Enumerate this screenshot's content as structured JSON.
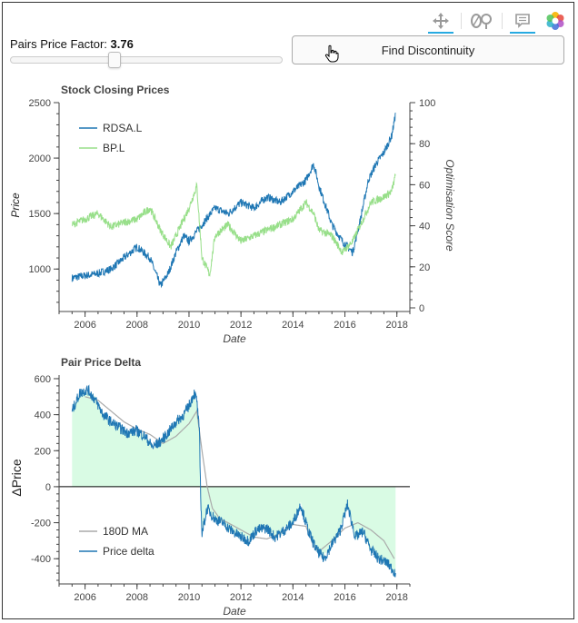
{
  "controls": {
    "slider_label": "Pairs Price Factor: ",
    "slider_value": "3.76",
    "slider_min": 0,
    "slider_max": 10,
    "button_label": "Find Discontinuity"
  },
  "toolbar": {
    "tools": [
      {
        "name": "pan-icon",
        "glyph": "✥",
        "active": true
      },
      {
        "name": "wheel-zoom-icon",
        "glyph": "0P",
        "active": false
      },
      {
        "name": "hover-icon",
        "glyph": "▤",
        "active": true
      },
      {
        "name": "bokeh-logo",
        "glyph": "",
        "active": false
      }
    ]
  },
  "chart_data": [
    {
      "type": "line",
      "title": "Stock Closing Prices",
      "xlabel": "Date",
      "ylabel": "Price",
      "y2label": "Optimisation Score",
      "xlim": [
        2005.0,
        2018.5
      ],
      "ylim": [
        650,
        2500
      ],
      "y2lim": [
        0,
        100
      ],
      "xticks": [
        2006,
        2008,
        2010,
        2012,
        2014,
        2016,
        2018
      ],
      "yticks": [
        1000,
        1500,
        2000,
        2500
      ],
      "y2ticks": [
        0,
        20,
        40,
        60,
        80,
        100
      ],
      "legend_position": "top-left",
      "series": [
        {
          "name": "RDSA.L",
          "color": "#1f77b4",
          "x": [
            2005.5,
            2006.0,
            2006.5,
            2007.0,
            2007.5,
            2008.0,
            2008.5,
            2008.9,
            2009.2,
            2009.5,
            2009.8,
            2010.0,
            2010.5,
            2011.0,
            2011.5,
            2012.0,
            2012.5,
            2013.0,
            2013.5,
            2014.0,
            2014.5,
            2014.8,
            2015.0,
            2015.5,
            2015.9,
            2016.3,
            2016.6,
            2016.9,
            2017.2,
            2017.5,
            2017.8,
            2017.95
          ],
          "y": [
            920,
            940,
            960,
            1000,
            1100,
            1200,
            1100,
            850,
            960,
            1150,
            1300,
            1250,
            1400,
            1550,
            1500,
            1600,
            1550,
            1650,
            1600,
            1700,
            1800,
            1950,
            1750,
            1400,
            1250,
            1150,
            1450,
            1800,
            1950,
            2050,
            2200,
            2400
          ]
        },
        {
          "name": "BP.L",
          "color": "#98df8a",
          "x": [
            2005.5,
            2006.0,
            2006.5,
            2007.0,
            2007.5,
            2008.0,
            2008.5,
            2008.9,
            2009.3,
            2009.7,
            2010.0,
            2010.3,
            2010.5,
            2010.8,
            2011.0,
            2011.5,
            2012.0,
            2012.5,
            2013.0,
            2013.5,
            2014.0,
            2014.5,
            2014.8,
            2015.0,
            2015.5,
            2015.9,
            2016.3,
            2016.6,
            2017.0,
            2017.5,
            2017.8,
            2017.95
          ],
          "y": [
            1400,
            1450,
            1500,
            1380,
            1420,
            1450,
            1550,
            1350,
            1200,
            1400,
            1550,
            1750,
            1100,
            950,
            1300,
            1400,
            1250,
            1300,
            1350,
            1400,
            1450,
            1600,
            1500,
            1350,
            1300,
            1150,
            1250,
            1400,
            1600,
            1650,
            1700,
            1850
          ]
        }
      ]
    },
    {
      "type": "line",
      "title": "Pair Price Delta",
      "xlabel": "Date",
      "ylabel": "ΔPrice",
      "xlim": [
        2005.0,
        2018.5
      ],
      "ylim": [
        -520,
        620
      ],
      "xticks": [
        2006,
        2008,
        2010,
        2012,
        2014,
        2016,
        2018
      ],
      "yticks": [
        -400,
        -200,
        0,
        200,
        400,
        600
      ],
      "legend_position": "bottom-left",
      "fill_color": "#d9fbe4",
      "zero_line": true,
      "series": [
        {
          "name": "180D MA",
          "color": "#aaaaaa",
          "x": [
            2006.0,
            2006.5,
            2007.0,
            2007.5,
            2008.0,
            2008.5,
            2009.0,
            2009.5,
            2010.0,
            2010.3,
            2010.5,
            2010.7,
            2010.9,
            2011.2,
            2011.5,
            2012.0,
            2012.5,
            2013.0,
            2013.5,
            2014.0,
            2014.5,
            2014.8,
            2015.0,
            2015.5,
            2016.0,
            2016.5,
            2017.0,
            2017.5,
            2017.9
          ],
          "y": [
            500,
            480,
            420,
            360,
            320,
            290,
            240,
            280,
            350,
            420,
            200,
            0,
            -120,
            -180,
            -200,
            -240,
            -280,
            -290,
            -260,
            -210,
            -220,
            -330,
            -360,
            -300,
            -230,
            -200,
            -240,
            -300,
            -400
          ]
        },
        {
          "name": "Price delta",
          "color": "#1f77b4",
          "x": [
            2005.5,
            2005.8,
            2006.1,
            2006.4,
            2006.7,
            2007.0,
            2007.3,
            2007.6,
            2008.0,
            2008.3,
            2008.6,
            2008.9,
            2009.2,
            2009.5,
            2009.8,
            2010.0,
            2010.2,
            2010.3,
            2010.4,
            2010.45,
            2010.5,
            2010.7,
            2011.0,
            2011.3,
            2011.6,
            2012.0,
            2012.3,
            2012.6,
            2013.0,
            2013.3,
            2013.6,
            2014.0,
            2014.3,
            2014.6,
            2014.9,
            2015.2,
            2015.5,
            2015.8,
            2016.1,
            2016.4,
            2016.7,
            2017.0,
            2017.3,
            2017.6,
            2017.95
          ],
          "y": [
            420,
            520,
            540,
            480,
            400,
            360,
            330,
            300,
            310,
            280,
            220,
            250,
            300,
            360,
            400,
            450,
            520,
            480,
            300,
            -50,
            -260,
            -120,
            -180,
            -200,
            -240,
            -280,
            -300,
            -240,
            -230,
            -280,
            -250,
            -200,
            -100,
            -250,
            -350,
            -400,
            -320,
            -250,
            -100,
            -280,
            -250,
            -350,
            -400,
            -420,
            -480
          ]
        }
      ]
    }
  ]
}
